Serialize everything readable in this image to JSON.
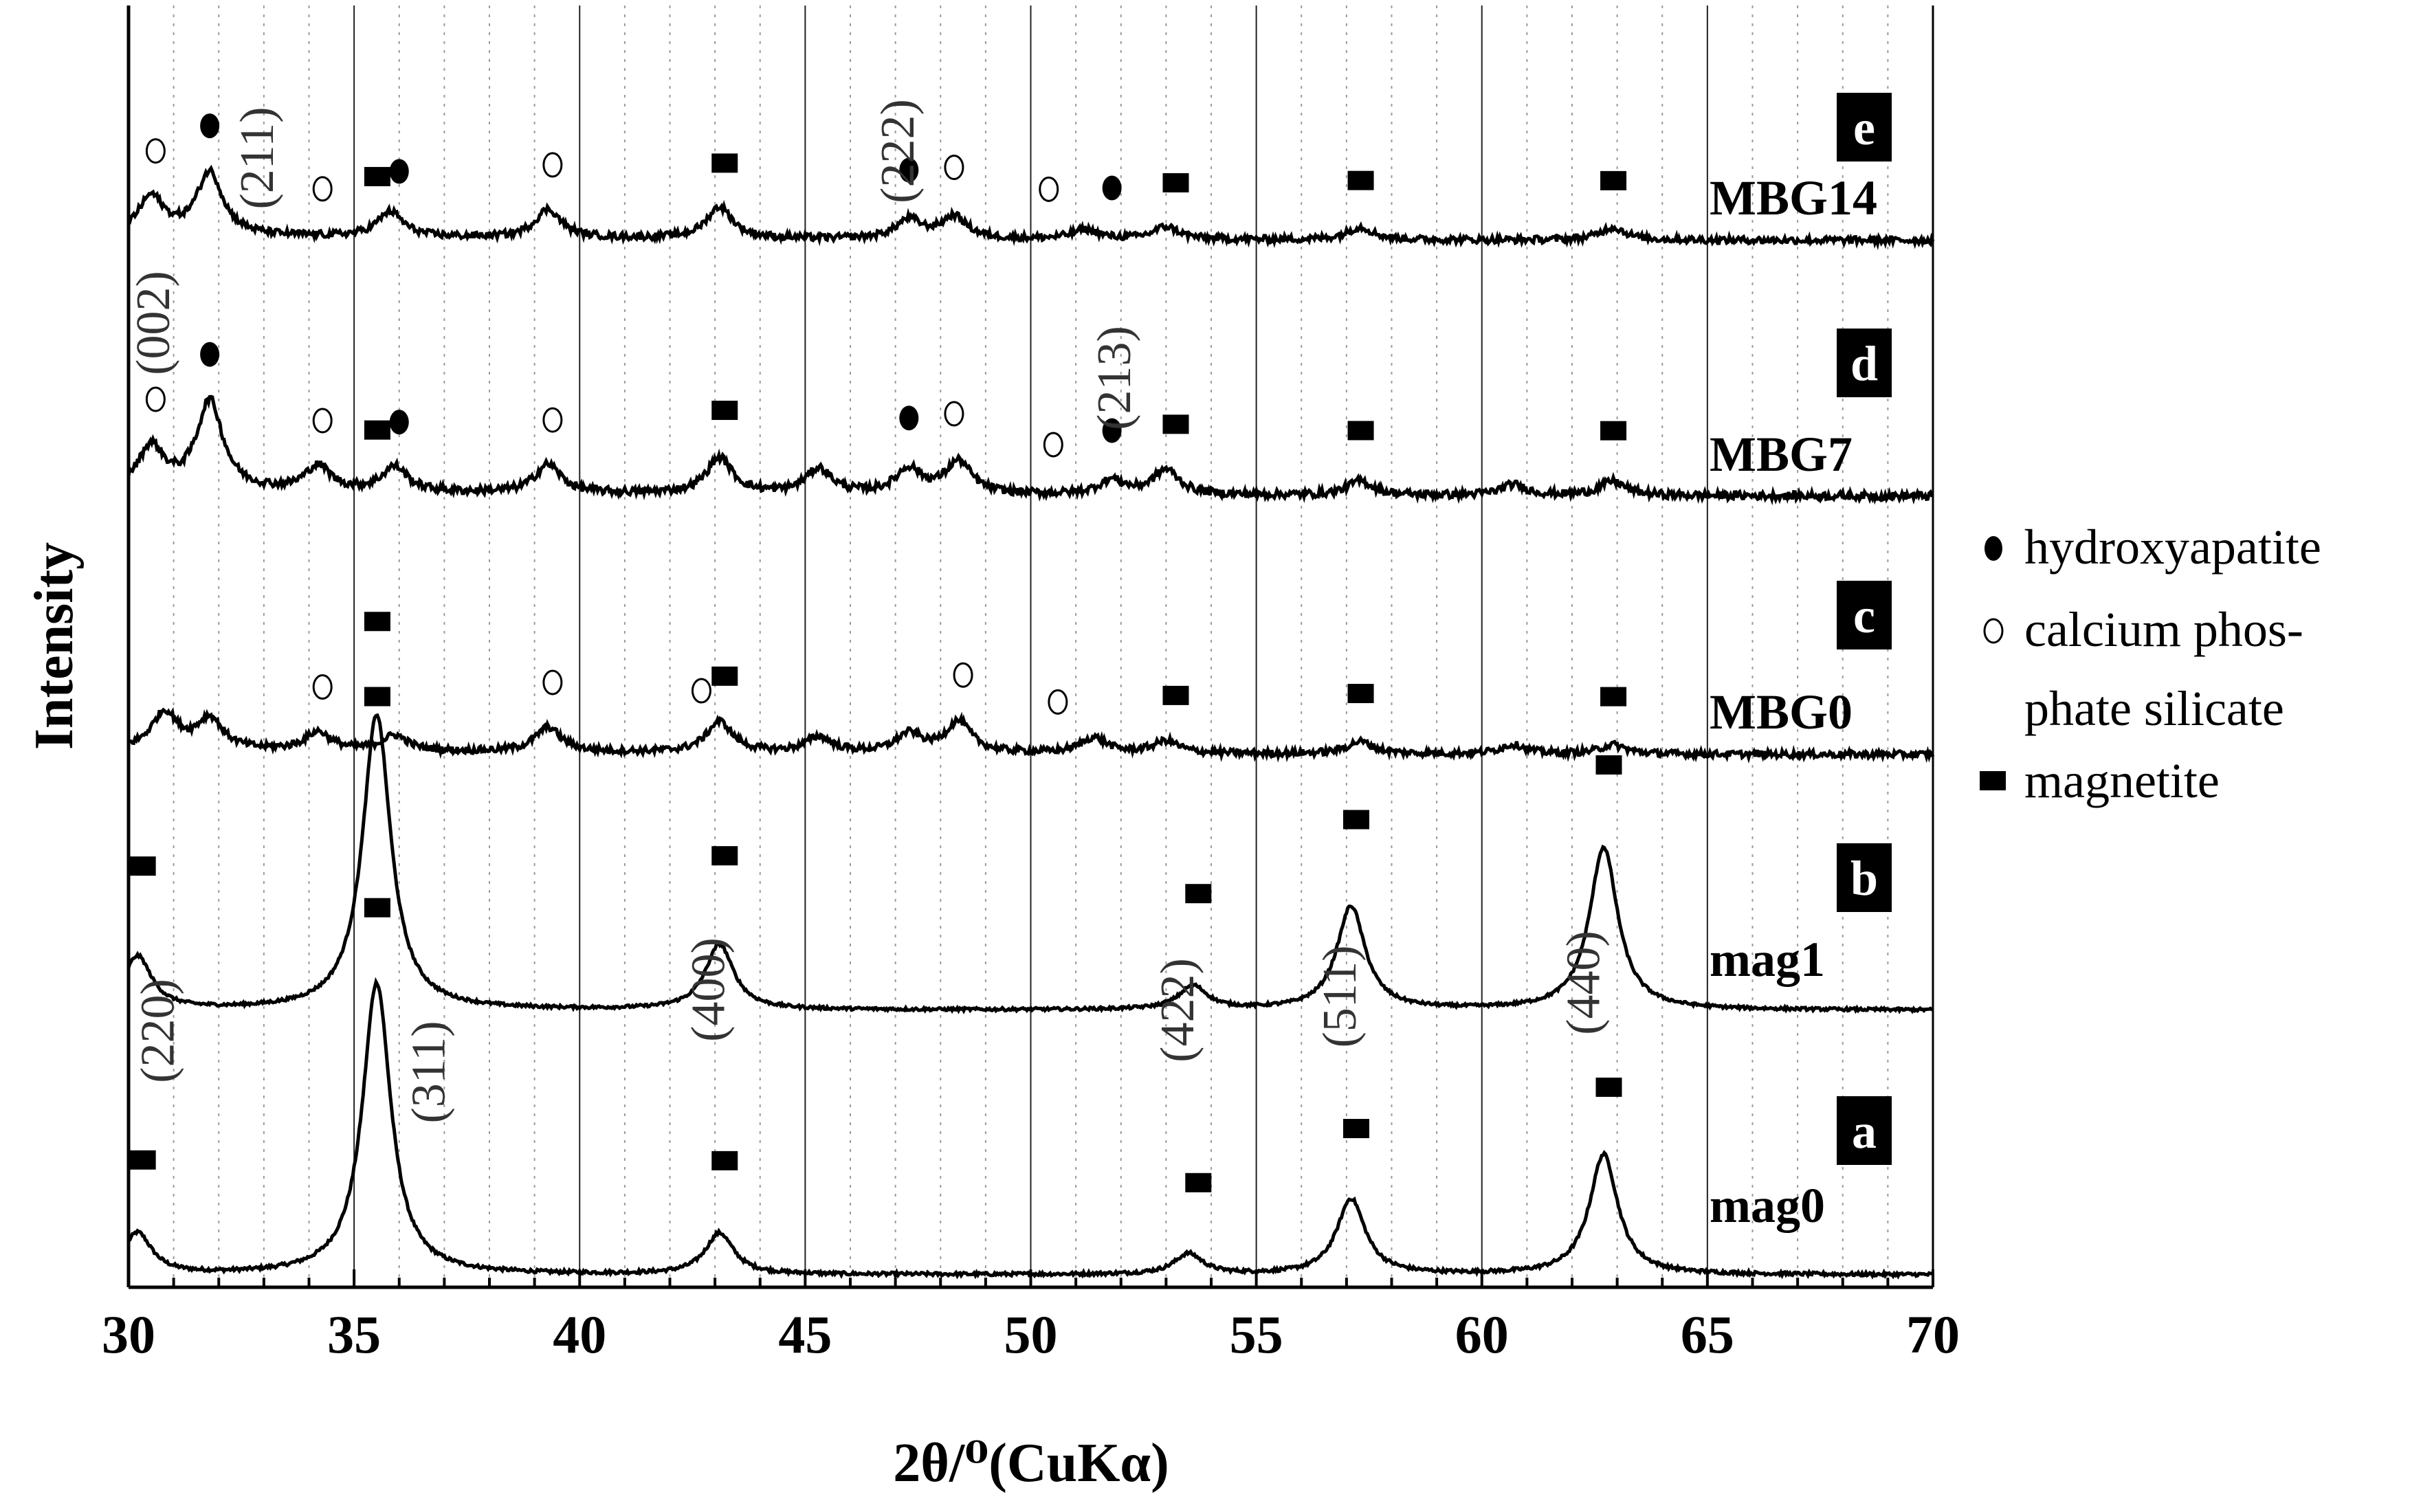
{
  "chart_data": {
    "type": "line",
    "xlabel": "2θ/⁰(CuKα)",
    "ylabel": "Intensity",
    "xlim": [
      30,
      70
    ],
    "x_ticks": [
      "30",
      "35",
      "40",
      "45",
      "50",
      "55",
      "60",
      "65",
      "70"
    ],
    "grid": "vertical lines at every 5°, dotted lines at every 1°",
    "series": [
      {
        "name": "mag0",
        "panel": "a",
        "peaks": [
          {
            "x": 30.2,
            "h": 0.12
          },
          {
            "x": 35.5,
            "h": 0.85
          },
          {
            "x": 43.1,
            "h": 0.12
          },
          {
            "x": 53.5,
            "h": 0.06
          },
          {
            "x": 57.1,
            "h": 0.22
          },
          {
            "x": 62.7,
            "h": 0.35
          }
        ]
      },
      {
        "name": "mag1",
        "panel": "b",
        "peaks": [
          {
            "x": 30.2,
            "h": 0.18
          },
          {
            "x": 35.5,
            "h": 1.0
          },
          {
            "x": 43.1,
            "h": 0.22
          },
          {
            "x": 53.6,
            "h": 0.08
          },
          {
            "x": 57.1,
            "h": 0.35
          },
          {
            "x": 62.7,
            "h": 0.55
          }
        ]
      },
      {
        "name": "MBG0",
        "panel": "c",
        "peaks": [
          {
            "x": 30.8,
            "h": 0.12
          },
          {
            "x": 31.8,
            "h": 0.1
          },
          {
            "x": 34.2,
            "h": 0.06
          },
          {
            "x": 35.9,
            "h": 0.05
          },
          {
            "x": 39.3,
            "h": 0.08
          },
          {
            "x": 43.1,
            "h": 0.1
          },
          {
            "x": 45.3,
            "h": 0.05
          },
          {
            "x": 47.3,
            "h": 0.06
          },
          {
            "x": 48.4,
            "h": 0.1
          },
          {
            "x": 51.4,
            "h": 0.05
          },
          {
            "x": 53.0,
            "h": 0.04
          },
          {
            "x": 57.3,
            "h": 0.04
          },
          {
            "x": 60.7,
            "h": 0.03
          },
          {
            "x": 62.9,
            "h": 0.03
          }
        ]
      },
      {
        "name": "MBG7",
        "panel": "d",
        "peaks": [
          {
            "x": 30.5,
            "h": 0.12
          },
          {
            "x": 31.8,
            "h": 0.25
          },
          {
            "x": 34.2,
            "h": 0.07
          },
          {
            "x": 35.9,
            "h": 0.07
          },
          {
            "x": 39.3,
            "h": 0.08
          },
          {
            "x": 43.1,
            "h": 0.1
          },
          {
            "x": 45.3,
            "h": 0.07
          },
          {
            "x": 47.3,
            "h": 0.07
          },
          {
            "x": 48.4,
            "h": 0.09
          },
          {
            "x": 51.8,
            "h": 0.04
          },
          {
            "x": 53.0,
            "h": 0.07
          },
          {
            "x": 57.3,
            "h": 0.04
          },
          {
            "x": 60.7,
            "h": 0.03
          },
          {
            "x": 62.9,
            "h": 0.04
          }
        ]
      },
      {
        "name": "MBG14",
        "panel": "e",
        "peaks": [
          {
            "x": 30.5,
            "h": 0.12
          },
          {
            "x": 31.8,
            "h": 0.2
          },
          {
            "x": 35.8,
            "h": 0.08
          },
          {
            "x": 39.3,
            "h": 0.09
          },
          {
            "x": 43.1,
            "h": 0.1
          },
          {
            "x": 47.3,
            "h": 0.06
          },
          {
            "x": 48.3,
            "h": 0.07
          },
          {
            "x": 51.2,
            "h": 0.03
          },
          {
            "x": 53.0,
            "h": 0.04
          },
          {
            "x": 57.3,
            "h": 0.04
          },
          {
            "x": 62.9,
            "h": 0.04
          }
        ]
      }
    ],
    "hkl_labels": [
      "(220)",
      "(311)",
      "(400)",
      "(422)",
      "(511)",
      "(440)",
      "(002)",
      "(211)",
      "(222)",
      "(213)"
    ],
    "legend": {
      "placement": "right",
      "entries": [
        {
          "symbol": "filled-circle-icon",
          "label": "hydroxyapatite"
        },
        {
          "symbol": "open-circle-icon",
          "label": "calcium phos-"
        },
        {
          "symbol": "",
          "label": "phate silicate"
        },
        {
          "symbol": "filled-square-icon",
          "label": "magnetite"
        }
      ]
    },
    "markers": {
      "magnetite_square": [
        {
          "panel": "a",
          "x": 30.3
        },
        {
          "panel": "a",
          "x": 35.5
        },
        {
          "panel": "a",
          "x": 43.2
        },
        {
          "panel": "a",
          "x": 53.7
        },
        {
          "panel": "a",
          "x": 57.2
        },
        {
          "panel": "a",
          "x": 62.8
        },
        {
          "panel": "b",
          "x": 30.3
        },
        {
          "panel": "b",
          "x": 35.5
        },
        {
          "panel": "b",
          "x": 43.2
        },
        {
          "panel": "b",
          "x": 53.7
        },
        {
          "panel": "b",
          "x": 57.2
        },
        {
          "panel": "b",
          "x": 62.8
        },
        {
          "panel": "c",
          "x": 35.5
        },
        {
          "panel": "c",
          "x": 43.2
        },
        {
          "panel": "c",
          "x": 53.2
        },
        {
          "panel": "c",
          "x": 57.3
        },
        {
          "panel": "c",
          "x": 62.9
        },
        {
          "panel": "d",
          "x": 35.5
        },
        {
          "panel": "d",
          "x": 43.2
        },
        {
          "panel": "d",
          "x": 53.2
        },
        {
          "panel": "d",
          "x": 57.3
        },
        {
          "panel": "d",
          "x": 62.9
        },
        {
          "panel": "e",
          "x": 35.5
        },
        {
          "panel": "e",
          "x": 43.2
        },
        {
          "panel": "e",
          "x": 53.2
        },
        {
          "panel": "e",
          "x": 57.3
        },
        {
          "panel": "e",
          "x": 62.9
        }
      ],
      "hydroxyapatite_filled": [
        {
          "panel": "d",
          "x": 31.8
        },
        {
          "panel": "d",
          "x": 36.0
        },
        {
          "panel": "d",
          "x": 47.3
        },
        {
          "panel": "d",
          "x": 51.8
        },
        {
          "panel": "e",
          "x": 31.8
        },
        {
          "panel": "e",
          "x": 36.0
        },
        {
          "panel": "e",
          "x": 47.3
        },
        {
          "panel": "e",
          "x": 51.8
        }
      ],
      "calcium_phosphate_silicate_open": [
        {
          "panel": "c",
          "x": 34.3
        },
        {
          "panel": "c",
          "x": 39.4
        },
        {
          "panel": "c",
          "x": 42.7
        },
        {
          "panel": "c",
          "x": 48.5
        },
        {
          "panel": "c",
          "x": 50.6
        },
        {
          "panel": "d",
          "x": 30.6
        },
        {
          "panel": "d",
          "x": 34.3
        },
        {
          "panel": "d",
          "x": 39.4
        },
        {
          "panel": "d",
          "x": 48.3
        },
        {
          "panel": "d",
          "x": 50.5
        },
        {
          "panel": "e",
          "x": 30.6
        },
        {
          "panel": "e",
          "x": 34.3
        },
        {
          "panel": "e",
          "x": 39.4
        },
        {
          "panel": "e",
          "x": 48.3
        },
        {
          "panel": "e",
          "x": 50.4
        }
      ]
    }
  }
}
